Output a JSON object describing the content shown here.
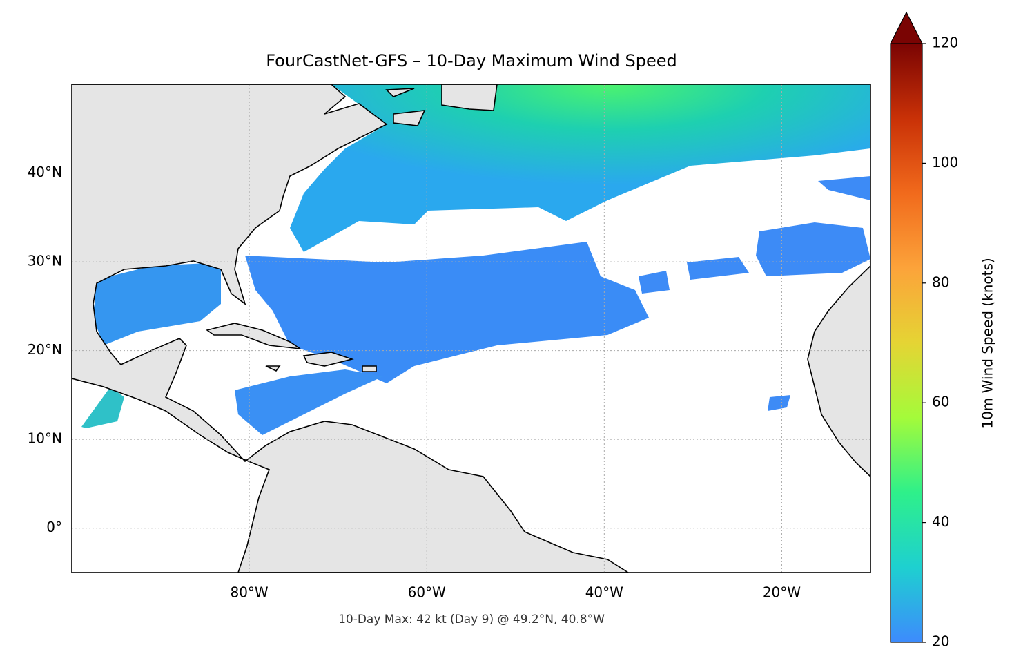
{
  "chart_data": {
    "type": "map",
    "title": "FourCastNet-GFS – 10-Day Maximum Wind Speed",
    "annotation": "10-Day Max: 42 kt (Day 9) @ 49.2°N, 40.8°W",
    "xlim": [
      -100,
      -10
    ],
    "ylim": [
      -5,
      50
    ],
    "xticks": [
      {
        "value": -80,
        "label": "80°W"
      },
      {
        "value": -60,
        "label": "60°W"
      },
      {
        "value": -40,
        "label": "40°W"
      },
      {
        "value": -20,
        "label": "20°W"
      }
    ],
    "yticks": [
      {
        "value": 0,
        "label": "0°"
      },
      {
        "value": 10,
        "label": "10°N"
      },
      {
        "value": 20,
        "label": "20°N"
      },
      {
        "value": 30,
        "label": "30°N"
      },
      {
        "value": 40,
        "label": "40°N"
      }
    ],
    "grid": true,
    "colorbar": {
      "label": "10m Wind Speed (knots)",
      "lim": [
        20,
        120
      ],
      "ticks": [
        20,
        40,
        60,
        80,
        100,
        120
      ],
      "colors": [
        "#3d8bfd",
        "#1ed0d0",
        "#2ef08a",
        "#a4fb3a",
        "#e5d434",
        "#fca33a",
        "#f16a1c",
        "#c93107",
        "#7a0403"
      ]
    }
  }
}
